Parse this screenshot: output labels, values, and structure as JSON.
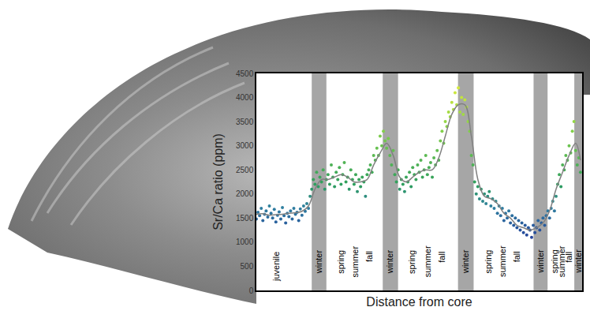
{
  "chart_data": {
    "type": "scatter",
    "y_label": "Sr/Ca ratio (ppm)",
    "x_label": "Distance from core",
    "xlim": [
      0,
      100
    ],
    "ylim": [
      0,
      4500
    ],
    "yticks": [
      0,
      500,
      1000,
      1500,
      2000,
      2500,
      3000,
      3500,
      4000,
      4500
    ],
    "tick_labels": "y",
    "grid": false,
    "series": [
      {
        "type": "scatter",
        "marker": "circle",
        "x": [
          0,
          0.5,
          1,
          1.5,
          2,
          2.5,
          3,
          3.5,
          4,
          4.5,
          5,
          5.5,
          6,
          6.5,
          7,
          7.5,
          8,
          8.5,
          9,
          9.5,
          10,
          10.5,
          11,
          11.5,
          12,
          12.5,
          13,
          13.5,
          14,
          14.5,
          15,
          15.5,
          16,
          16.5,
          17,
          17.5,
          18,
          18.5,
          19,
          19.5,
          20,
          20.5,
          21,
          21.5,
          22,
          22.5,
          23,
          23.5,
          24,
          24.5,
          25,
          25.5,
          26,
          26.5,
          27,
          27.5,
          28,
          28.5,
          29,
          29.5,
          30,
          30.5,
          31,
          31.5,
          32,
          32.5,
          33,
          33.5,
          34,
          34.5,
          35,
          35.5,
          36,
          36.5,
          37,
          37.5,
          38,
          38.5,
          39,
          39.5,
          40,
          40.5,
          41,
          41.5,
          42,
          42.5,
          43,
          43.5,
          44,
          44.5,
          45,
          45.5,
          46,
          46.5,
          47,
          47.5,
          48,
          48.5,
          49,
          49.5,
          50,
          50.5,
          51,
          51.5,
          52,
          52.5,
          53,
          53.5,
          54,
          54.5,
          55,
          55.5,
          56,
          56.5,
          57,
          57.5,
          58,
          58.5,
          59,
          59.5,
          60,
          60.5,
          61,
          61.5,
          62,
          62.5,
          63,
          63.5,
          64,
          64.5,
          65,
          65.5,
          66,
          66.5,
          67,
          67.5,
          68,
          68.5,
          69,
          69.5,
          70,
          70.5,
          71,
          71.5,
          72,
          72.5,
          73,
          73.5,
          74,
          74.5,
          75,
          75.5,
          76,
          76.5,
          77,
          77.5,
          78,
          78.5,
          79,
          79.5,
          80,
          80.5,
          81,
          81.5,
          82,
          82.5,
          83,
          83.5,
          84,
          84.5,
          85,
          85.5,
          86,
          86.5,
          87,
          87.5,
          88,
          88.5,
          89,
          89.5,
          90,
          90.5,
          91,
          91.5,
          92,
          92.5,
          93,
          93.5,
          94,
          94.5,
          95,
          95.5,
          96,
          96.5,
          97,
          97.5,
          98,
          98.5,
          99,
          99.5
        ],
        "values": [
          1480,
          1620,
          1550,
          1700,
          1450,
          1580,
          1650,
          1520,
          1750,
          1600,
          1500,
          1680,
          1420,
          1560,
          1630,
          1480,
          1720,
          1550,
          1400,
          1600,
          1530,
          1650,
          1480,
          1700,
          1580,
          1620,
          1450,
          1690,
          1560,
          1750,
          1640,
          1800,
          1700,
          1950,
          2100,
          2300,
          2200,
          2450,
          2150,
          2350,
          2250,
          2500,
          2100,
          2300,
          2400,
          2200,
          2600,
          2350,
          2150,
          2450,
          2300,
          2550,
          2200,
          2400,
          2650,
          2250,
          2350,
          2100,
          2500,
          2300,
          2200,
          2400,
          2050,
          2300,
          2150,
          2350,
          2250,
          1950,
          2400,
          2500,
          2600,
          2450,
          2800,
          2700,
          2950,
          2800,
          3200,
          3000,
          3300,
          3100,
          2950,
          3150,
          2800,
          2600,
          2900,
          2400,
          2250,
          2500,
          2100,
          2300,
          2200,
          2050,
          2350,
          2250,
          2450,
          2150,
          2550,
          2400,
          2300,
          2600,
          2450,
          2700,
          2350,
          2500,
          2800,
          2400,
          2550,
          2650,
          2350,
          2750,
          2600,
          2900,
          2700,
          3100,
          3300,
          3050,
          3500,
          3400,
          3700,
          3600,
          3900,
          3750,
          4100,
          3850,
          4200,
          3700,
          4000,
          3650,
          3950,
          3800,
          3500,
          3300,
          2800,
          2600,
          2250,
          2000,
          2150,
          1900,
          2100,
          1850,
          2000,
          1800,
          1950,
          2050,
          1750,
          1900,
          1700,
          1850,
          1600,
          1750,
          1550,
          1700,
          1450,
          1600,
          1500,
          1650,
          1400,
          1550,
          1350,
          1500,
          1300,
          1450,
          1250,
          1400,
          1200,
          1350,
          1150,
          1300,
          1250,
          1100,
          1350,
          1200,
          1300,
          1450,
          1250,
          1400,
          1500,
          1350,
          1550,
          1650,
          1500,
          1700,
          1850,
          1650,
          1950,
          2200,
          2400,
          2150,
          2600,
          2500,
          2800,
          2700,
          3000,
          2850,
          3300,
          3500,
          2900,
          2600,
          2750,
          2450
        ]
      },
      {
        "type": "line",
        "color": "#808080",
        "line_style": "solid",
        "x": [
          0,
          2,
          4,
          6,
          8,
          10,
          12,
          14,
          16,
          18,
          20,
          22,
          24,
          26,
          28,
          30,
          32,
          34,
          36,
          38,
          40,
          42,
          44,
          46,
          48,
          50,
          52,
          54,
          56,
          58,
          60,
          62,
          64,
          66,
          68,
          70,
          72,
          74,
          76,
          78,
          80,
          82,
          84,
          86,
          88,
          90,
          92,
          94,
          96,
          98,
          99.5
        ],
        "values": [
          1580,
          1590,
          1560,
          1570,
          1580,
          1600,
          1610,
          1640,
          1750,
          2100,
          2300,
          2300,
          2350,
          2400,
          2350,
          2250,
          2250,
          2300,
          2600,
          2850,
          3050,
          2800,
          2350,
          2250,
          2350,
          2450,
          2500,
          2500,
          2750,
          3200,
          3650,
          3850,
          3850,
          3200,
          2300,
          1950,
          1900,
          1800,
          1600,
          1500,
          1350,
          1300,
          1250,
          1300,
          1400,
          1650,
          2100,
          2450,
          2800,
          3050,
          2700
        ]
      }
    ],
    "bands": {
      "color": "#a6a6a6",
      "ranges": [
        [
          17,
          21.5
        ],
        [
          38.8,
          43.5
        ],
        [
          61.9,
          66.7
        ],
        [
          85.1,
          89.4
        ],
        [
          97.6,
          100
        ]
      ]
    },
    "annotations": [
      {
        "text": "juvenile",
        "x": 5.9,
        "y": 900
      },
      {
        "text": "winter",
        "x": 19.3,
        "y": 900
      },
      {
        "text": "spring",
        "x": 26.0,
        "y": 900
      },
      {
        "text": "summer",
        "x": 30.3,
        "y": 900
      },
      {
        "text": "fall",
        "x": 34.8,
        "y": 900
      },
      {
        "text": "winter",
        "x": 41.1,
        "y": 900
      },
      {
        "text": "spring",
        "x": 47.8,
        "y": 900
      },
      {
        "text": "summer",
        "x": 52.7,
        "y": 900
      },
      {
        "text": "fall",
        "x": 57.0,
        "y": 900
      },
      {
        "text": "winter",
        "x": 64.3,
        "y": 900
      },
      {
        "text": "spring",
        "x": 71.2,
        "y": 900
      },
      {
        "text": "summer",
        "x": 75.7,
        "y": 900
      },
      {
        "text": "fall",
        "x": 79.9,
        "y": 900
      },
      {
        "text": "winter",
        "x": 87.2,
        "y": 900
      },
      {
        "text": "spring",
        "x": 91.7,
        "y": 900
      },
      {
        "text": "summer",
        "x": 93.9,
        "y": 900
      },
      {
        "text": "fall",
        "x": 96.0,
        "y": 900
      },
      {
        "text": "winter",
        "x": 98.8,
        "y": 900
      }
    ]
  }
}
